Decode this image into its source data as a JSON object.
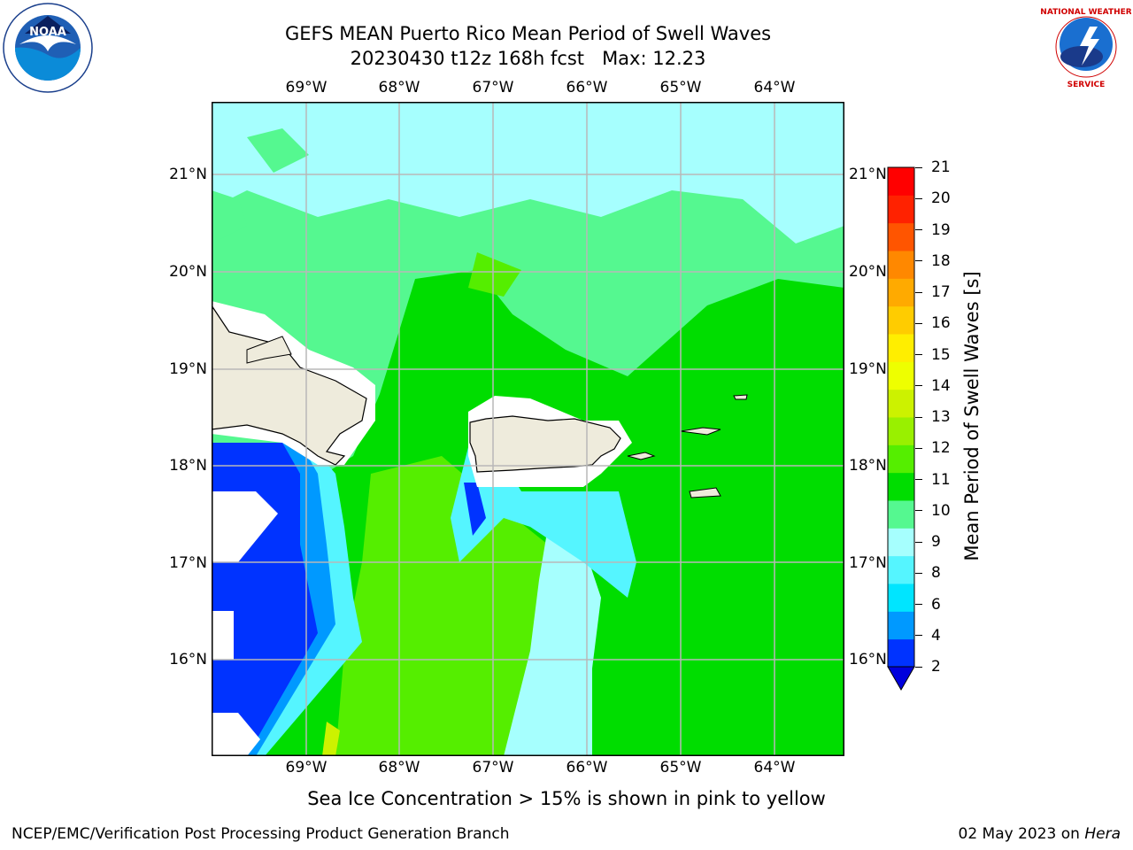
{
  "header": {
    "title_line1": "GEFS MEAN Puerto Rico Mean Period of Swell Waves",
    "title_line2": "20230430 t12z 168h fcst   Max: 12.23"
  },
  "logos": {
    "left": "NOAA",
    "left_ring_text": "NATIONAL OCEANIC AND ATMOSPHERIC ADMINISTRATION · U.S. DEPARTMENT OF COMMERCE",
    "right_ring_text": "NATIONAL WEATHER SERVICE"
  },
  "map": {
    "lon_labels": [
      "69°W",
      "68°W",
      "67°W",
      "66°W",
      "65°W",
      "64°W"
    ],
    "lat_labels": [
      "21°N",
      "20°N",
      "19°N",
      "18°N",
      "17°N",
      "16°N"
    ],
    "land_color": "#eeebdc",
    "grid_color": "#b8b8b8"
  },
  "colorbar": {
    "label": "Mean Period of Swell Waves [s]",
    "ticks": [
      "21",
      "20",
      "19",
      "18",
      "17",
      "16",
      "15",
      "14",
      "13",
      "12",
      "11",
      "10",
      "9",
      "8",
      "6",
      "4",
      "2"
    ],
    "colors": [
      "#0033ff",
      "#0099ff",
      "#00e5ff",
      "#55f5ff",
      "#a6fffe",
      "#55f890",
      "#00dd00",
      "#55ee00",
      "#99f000",
      "#ccf200",
      "#eeff00",
      "#ffee00",
      "#ffcc00",
      "#ffaa00",
      "#ff8800",
      "#ff5500",
      "#ff2200",
      "#ff0000"
    ],
    "extend_color": "#0000dd"
  },
  "caption": "Sea Ice Concentration > 15% is shown in pink to yellow",
  "footer": {
    "left": "NCEP/EMC/Verification Post Processing Product Generation Branch",
    "date": "02 May 2023 on ",
    "machine": "Hera"
  }
}
